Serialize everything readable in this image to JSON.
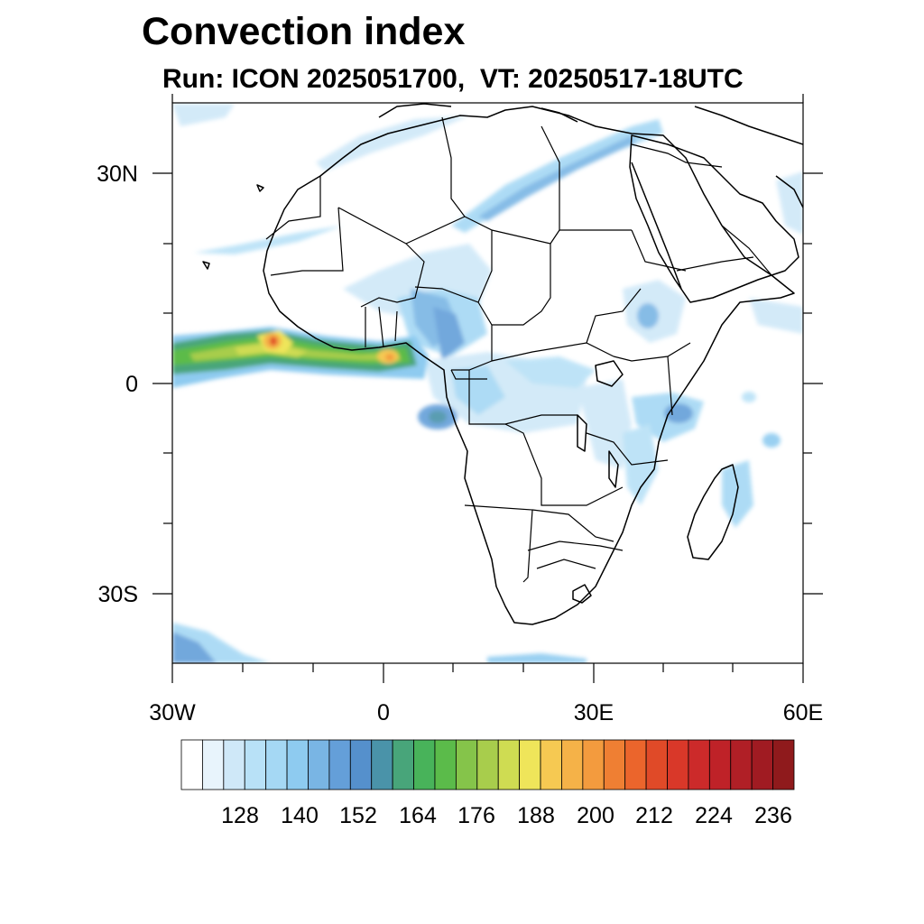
{
  "title": "Convection index",
  "subtitle": "Run: ICON 2025051700,  VT: 20250517-18UTC",
  "map": {
    "projection": "cylindrical-equidistant",
    "lon_range": [
      -30,
      60
    ],
    "lat_range": [
      -40,
      40
    ],
    "x_ticks": [
      {
        "value": -30,
        "label": "30W"
      },
      {
        "value": 0,
        "label": "0"
      },
      {
        "value": 30,
        "label": "30E"
      },
      {
        "value": 60,
        "label": "60E"
      }
    ],
    "y_ticks": [
      {
        "value": 30,
        "label": "30N"
      },
      {
        "value": 0,
        "label": "0"
      },
      {
        "value": -30,
        "label": "30S"
      }
    ]
  },
  "colorbar": {
    "labels": [
      "128",
      "140",
      "152",
      "164",
      "176",
      "188",
      "200",
      "212",
      "224",
      "236"
    ],
    "colors": [
      "#ffffff",
      "#e8f4fc",
      "#cfe8f8",
      "#b8e1f7",
      "#a5d8f4",
      "#8ecbf0",
      "#79b5e4",
      "#649fd9",
      "#5590cc",
      "#4a93a9",
      "#48a57a",
      "#48b35a",
      "#5bbb4a",
      "#85c44a",
      "#a8cd4c",
      "#cfdc52",
      "#efe55a",
      "#f6c952",
      "#f5b248",
      "#f39b3e",
      "#ef7f33",
      "#eb652c",
      "#e04a28",
      "#d93829",
      "#cc2a2a",
      "#bf2228",
      "#b01f26",
      "#a01b22",
      "#8f1a1c"
    ]
  },
  "legend_note": "color-filled convection index over Africa"
}
